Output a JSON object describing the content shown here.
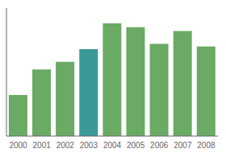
{
  "chart_data": {
    "type": "bar",
    "categories": [
      "2000",
      "2001",
      "2002",
      "2003",
      "2004",
      "2005",
      "2006",
      "2007",
      "2008"
    ],
    "values": [
      32,
      52,
      58,
      68,
      88,
      85,
      72,
      82,
      70
    ],
    "colors": [
      "#6aaa64",
      "#6aaa64",
      "#6aaa64",
      "#3a9a9a",
      "#6aaa64",
      "#6aaa64",
      "#6aaa64",
      "#6aaa64",
      "#6aaa64"
    ],
    "ylim": [
      0,
      100
    ],
    "grid": false,
    "tick_labels": "x"
  }
}
